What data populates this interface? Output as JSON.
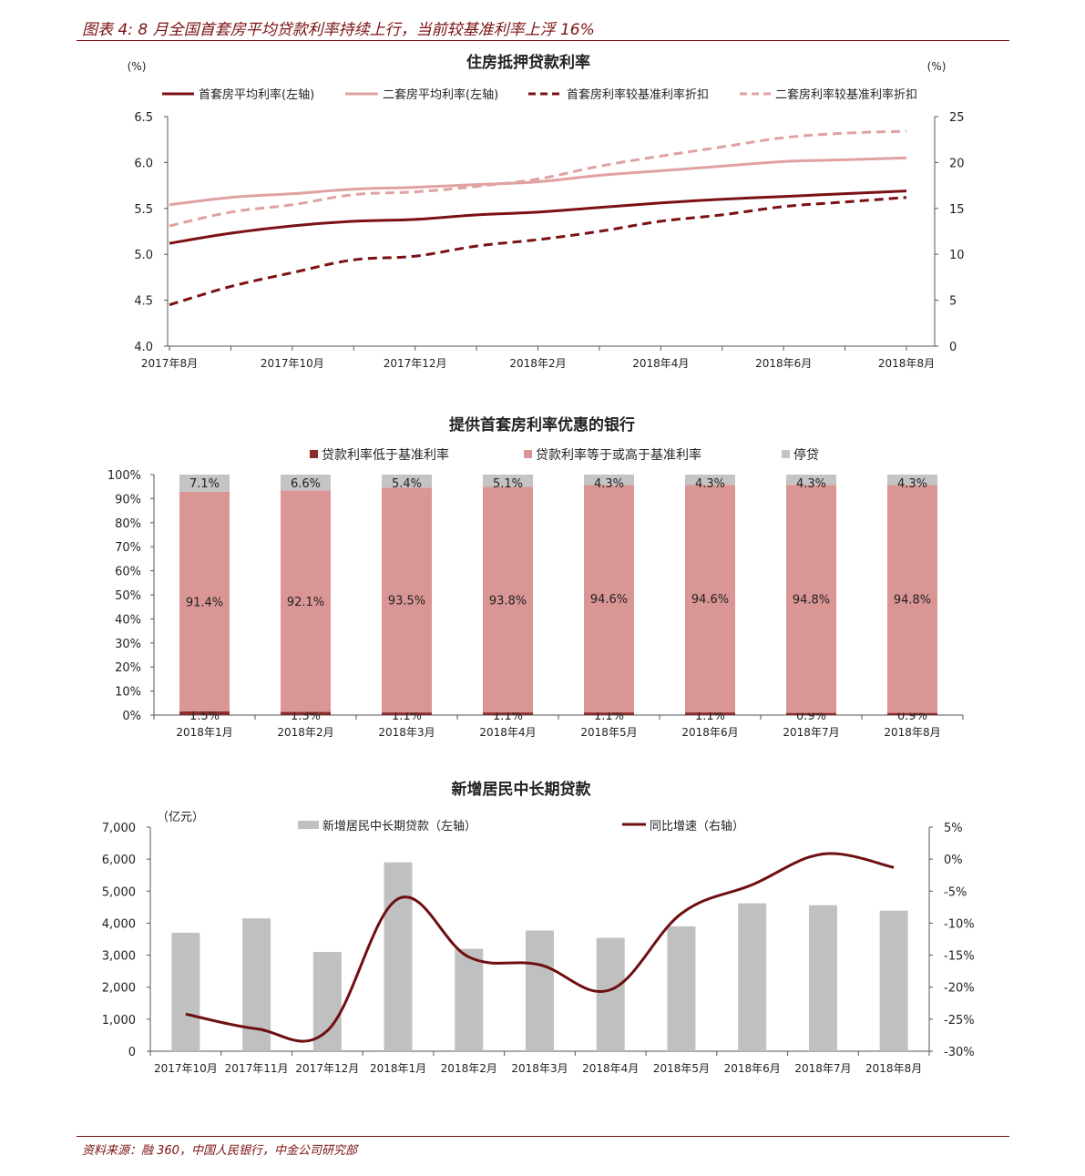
{
  "figure_title": "图表 4: 8 月全国首套房平均贷款利率持续上行，当前较基准利率上浮 16%",
  "source": "资料来源：融 360，中国人民银行，中金公司研究部",
  "colors": {
    "dark_red": "#7b1113",
    "pink": "#e0a1a1",
    "bar_pink": "#d99694",
    "gray": "#c4c4c4",
    "rule": "#7b1113"
  },
  "chart_data": [
    {
      "type": "line",
      "title": "住房抵押贷款利率",
      "left_unit": "(%)",
      "right_unit": "(%)",
      "ylim_left": [
        4.0,
        6.5
      ],
      "yticks_left": [
        "4.0",
        "4.5",
        "5.0",
        "5.5",
        "6.0",
        "6.5"
      ],
      "ylim_right": [
        0,
        25
      ],
      "yticks_right": [
        "0",
        "5",
        "10",
        "15",
        "20",
        "25"
      ],
      "x_labels": [
        "2017年8月",
        "2017年10月",
        "2017年12月",
        "2018年2月",
        "2018年4月",
        "2018年6月",
        "2018年8月"
      ],
      "series": [
        {
          "name": "首套房平均利率(左轴)",
          "axis": "left",
          "style": "solid",
          "color": "#7b1113",
          "values": [
            5.12,
            5.23,
            5.31,
            5.36,
            5.38,
            5.43,
            5.46,
            5.51,
            5.56,
            5.6,
            5.63,
            5.66,
            5.69
          ]
        },
        {
          "name": "二套房平均利率(左轴)",
          "axis": "left",
          "style": "solid",
          "color": "#e0a1a1",
          "values": [
            5.54,
            5.62,
            5.66,
            5.71,
            5.73,
            5.76,
            5.79,
            5.86,
            5.91,
            5.96,
            6.01,
            6.03,
            6.05
          ]
        },
        {
          "name": "首套房利率较基准利率折扣",
          "axis": "right",
          "style": "dashed",
          "color": "#7b1113",
          "values": [
            4.5,
            6.5,
            8.0,
            9.4,
            9.8,
            10.9,
            11.6,
            12.5,
            13.6,
            14.3,
            15.2,
            15.7,
            16.2
          ]
        },
        {
          "name": "二套房利率较基准利率折扣",
          "axis": "right",
          "style": "dashed",
          "color": "#e0a1a1",
          "values": [
            13.1,
            14.6,
            15.4,
            16.5,
            16.8,
            17.4,
            18.2,
            19.6,
            20.7,
            21.7,
            22.7,
            23.2,
            23.4
          ]
        }
      ]
    },
    {
      "type": "bar",
      "stacked": true,
      "title": "提供首套房利率优惠的银行",
      "ylim": [
        0,
        100
      ],
      "yticks": [
        "0%",
        "10%",
        "20%",
        "30%",
        "40%",
        "50%",
        "60%",
        "70%",
        "80%",
        "90%",
        "100%"
      ],
      "categories": [
        "2018年1月",
        "2018年2月",
        "2018年3月",
        "2018年4月",
        "2018年5月",
        "2018年6月",
        "2018年7月",
        "2018年8月"
      ],
      "series": [
        {
          "name": "贷款利率低于基准利率",
          "color": "#8b2c2c",
          "values": [
            1.5,
            1.3,
            1.1,
            1.1,
            1.1,
            1.1,
            0.9,
            0.9
          ],
          "labels": [
            "1.5%",
            "1.3%",
            "1.1%",
            "1.1%",
            "1.1%",
            "1.1%",
            "0.9%",
            "0.9%"
          ]
        },
        {
          "name": "贷款利率等于或高于基准利率",
          "color": "#d99694",
          "values": [
            91.4,
            92.1,
            93.5,
            93.8,
            94.6,
            94.6,
            94.8,
            94.8
          ],
          "labels": [
            "91.4%",
            "92.1%",
            "93.5%",
            "93.8%",
            "94.6%",
            "94.6%",
            "94.8%",
            "94.8%"
          ]
        },
        {
          "name": "停贷",
          "color": "#c4c4c4",
          "values": [
            7.1,
            6.6,
            5.4,
            5.1,
            4.3,
            4.3,
            4.3,
            4.3
          ],
          "labels": [
            "7.1%",
            "6.6%",
            "5.4%",
            "5.1%",
            "4.3%",
            "4.3%",
            "4.3%",
            "4.3%"
          ]
        }
      ]
    },
    {
      "type": "bar+line",
      "title": "新增居民中长期贷款",
      "left_unit": "（亿元）",
      "ylim_left": [
        0,
        7000
      ],
      "yticks_left": [
        "0",
        "1,000",
        "2,000",
        "3,000",
        "4,000",
        "5,000",
        "6,000",
        "7,000"
      ],
      "ylim_right": [
        -30,
        5
      ],
      "yticks_right": [
        "-30%",
        "-25%",
        "-20%",
        "-15%",
        "-10%",
        "-5%",
        "0%",
        "5%"
      ],
      "categories": [
        "2017年10月",
        "2017年11月",
        "2017年12月",
        "2018年1月",
        "2018年2月",
        "2018年3月",
        "2018年4月",
        "2018年5月",
        "2018年6月",
        "2018年7月",
        "2018年8月"
      ],
      "bars": {
        "name": "新增居民中长期贷款（左轴）",
        "color": "#c0c0c0",
        "values": [
          3700,
          4150,
          3100,
          5900,
          3200,
          3770,
          3540,
          3900,
          4620,
          4560,
          4390
        ]
      },
      "line": {
        "name": "同比增速（右轴）",
        "color": "#6e0f12",
        "values": [
          -24.2,
          -26.5,
          -26.8,
          -6.2,
          -15.3,
          -16.5,
          -20.4,
          -8.5,
          -4.0,
          0.8,
          -1.3
        ]
      }
    }
  ]
}
